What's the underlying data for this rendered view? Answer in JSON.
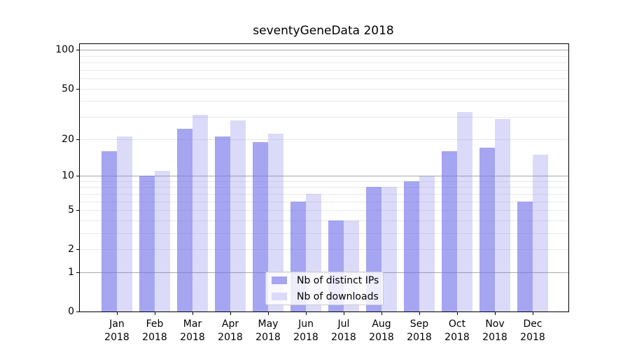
{
  "chart_data": {
    "type": "bar",
    "title": "seventyGeneData 2018",
    "categories": [
      "Jan",
      "Feb",
      "Mar",
      "Apr",
      "May",
      "Jun",
      "Jul",
      "Aug",
      "Sep",
      "Oct",
      "Nov",
      "Dec"
    ],
    "category_year_label": "2018",
    "series": [
      {
        "name": "Nb of distinct IPs",
        "values": [
          16,
          10,
          24,
          21,
          19,
          6,
          4,
          8,
          9,
          16,
          17,
          6
        ],
        "bar_color": "rgba(117,117,235,0.65)",
        "swatch_color": "#a5a5f2"
      },
      {
        "name": "Nb of downloads",
        "values": [
          21,
          11,
          31,
          28,
          22,
          7,
          4,
          8,
          10,
          33,
          29,
          15
        ],
        "bar_color": "rgba(112,112,232,0.25)",
        "swatch_color": "#dbdbf9"
      }
    ],
    "y_axis": {
      "scale": "log1p",
      "tick_values": [
        100,
        50,
        20,
        10,
        5,
        2,
        1,
        0
      ],
      "tick_labels": [
        "100",
        "50",
        "20",
        "10",
        "5",
        "2",
        "1",
        "0"
      ],
      "major_gridline_values": [
        1,
        10,
        100
      ],
      "minor_gridline_values": [
        2,
        3,
        4,
        5,
        6,
        7,
        8,
        9,
        20,
        30,
        40,
        50,
        60,
        70,
        80,
        90
      ],
      "ylim": [
        0,
        111
      ]
    },
    "legend": {
      "position": "lower center",
      "entries": [
        "Nb of distinct IPs",
        "Nb of downloads"
      ]
    },
    "grid": "on"
  },
  "colors": {
    "background": "#ffffff",
    "axis": "#000000",
    "major_grid": "#a9a9a9",
    "minor_grid": "#e8e8e8"
  }
}
